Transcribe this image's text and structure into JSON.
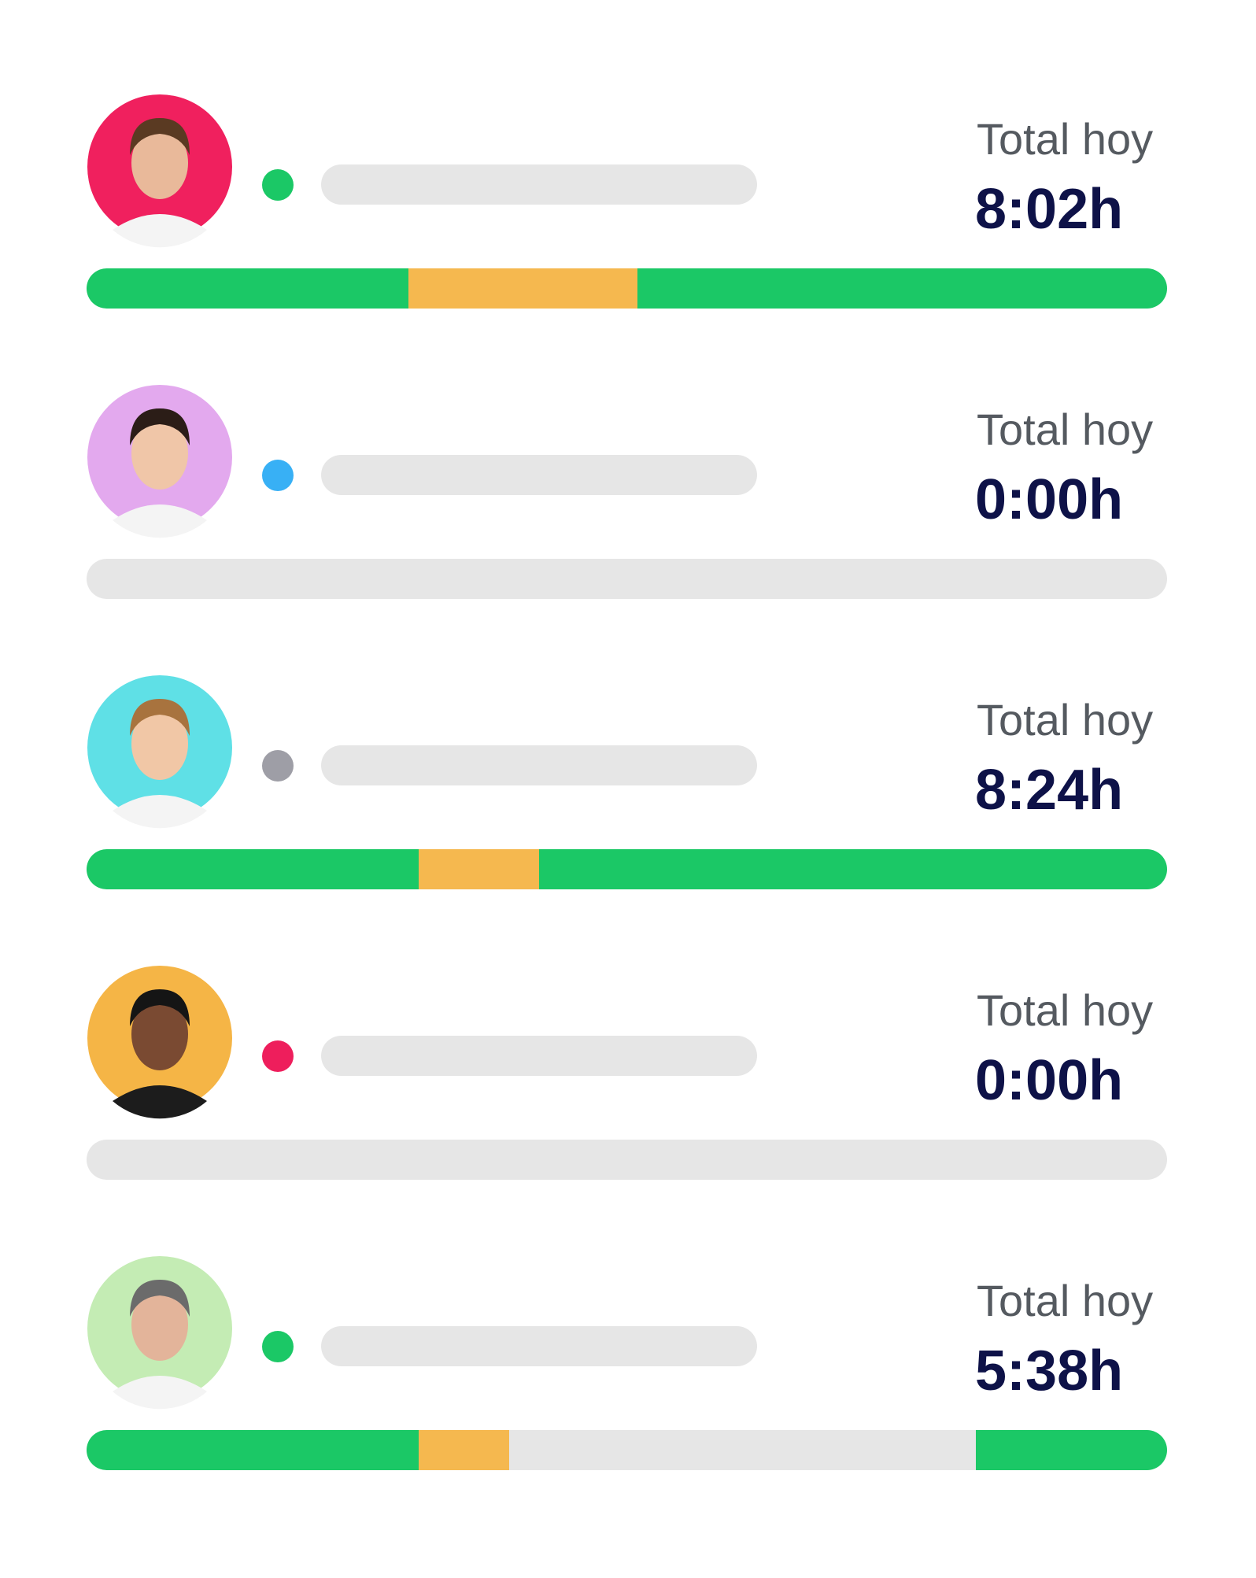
{
  "rows": [
    {
      "label": "Total hoy",
      "total": "8:02h"
    },
    {
      "label": "Total hoy",
      "total": "0:00h"
    },
    {
      "label": "Total hoy",
      "total": "8:24h"
    },
    {
      "label": "Total hoy",
      "total": "0:00h"
    },
    {
      "label": "Total hoy",
      "total": "5:38h"
    }
  ]
}
